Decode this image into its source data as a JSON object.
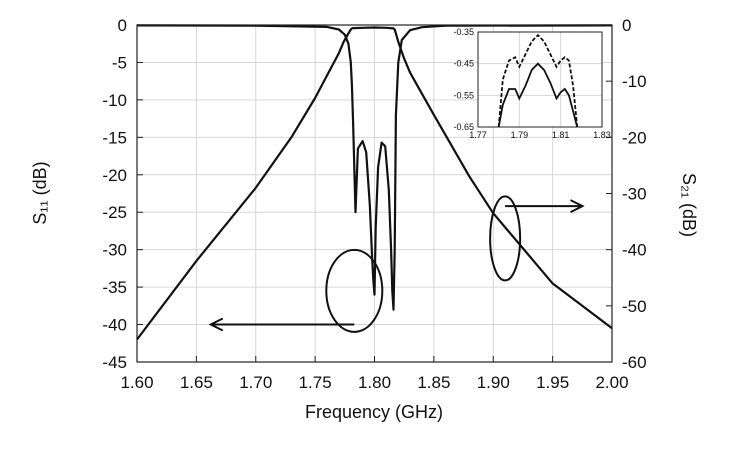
{
  "chart_data": [
    {
      "type": "line",
      "xlabel": "Frequency (GHz)",
      "ylabel_left": "S₁₁ (dB)",
      "ylabel_right": "S₂₁ (dB)",
      "xlim": [
        1.6,
        2.0
      ],
      "ylim_left": [
        -45,
        0
      ],
      "ylim_right": [
        -60,
        0
      ],
      "x_ticks": [
        "1.60",
        "1.65",
        "1.70",
        "1.75",
        "1.80",
        "1.85",
        "1.90",
        "1.95",
        "2.00"
      ],
      "y_ticks_left": [
        "0",
        "-5",
        "-10",
        "-15",
        "-20",
        "-25",
        "-30",
        "-35",
        "-40",
        "-45"
      ],
      "y_ticks_right": [
        "0",
        "-10",
        "-20",
        "-30",
        "-40",
        "-50",
        "-60"
      ],
      "grid": true,
      "series": [
        {
          "role": "S11",
          "axis": "left",
          "x": [
            1.6,
            1.7,
            1.76,
            1.77,
            1.775,
            1.778,
            1.78,
            1.781,
            1.782,
            1.784,
            1.786,
            1.79,
            1.793,
            1.796,
            1.798,
            1.799,
            1.8,
            1.801,
            1.803,
            1.806,
            1.809,
            1.812,
            1.814,
            1.815,
            1.816,
            1.817,
            1.818,
            1.82,
            1.823,
            1.83,
            1.84,
            1.86,
            2.0
          ],
          "y": [
            -0.05,
            -0.08,
            -0.25,
            -0.6,
            -1.3,
            -2.5,
            -5,
            -8,
            -13,
            -25,
            -16.5,
            -15.5,
            -17,
            -24,
            -31,
            -34,
            -36,
            -27,
            -19,
            -15.7,
            -16.2,
            -22,
            -30,
            -35.5,
            -38,
            -30,
            -12,
            -5,
            -2,
            -0.7,
            -0.3,
            -0.1,
            -0.05
          ]
        },
        {
          "role": "S21",
          "axis": "right",
          "x": [
            1.6,
            1.65,
            1.7,
            1.73,
            1.75,
            1.76,
            1.77,
            1.774,
            1.778,
            1.78,
            1.781,
            1.782,
            1.79,
            1.8,
            1.81,
            1.816,
            1.817,
            1.818,
            1.82,
            1.825,
            1.83,
            1.85,
            1.88,
            1.9,
            1.95,
            2.0
          ],
          "y": [
            -56,
            -42,
            -29,
            -20,
            -13,
            -9,
            -5,
            -3,
            -1.5,
            -0.8,
            -0.6,
            -0.55,
            -0.5,
            -0.45,
            -0.5,
            -0.6,
            -0.8,
            -1.5,
            -3,
            -6,
            -8.5,
            -16,
            -27,
            -33.5,
            -46,
            -54
          ]
        }
      ],
      "annotations": [
        {
          "shape": "ellipse",
          "at": [
            1.783,
            -35.5
          ],
          "arrow": "left",
          "arrow_to": [
            1.7,
            -40.5
          ]
        },
        {
          "shape": "ellipse",
          "at": [
            1.91,
            -28.5
          ],
          "arrow": "right",
          "arrow_to": [
            1.96,
            -30
          ]
        }
      ],
      "inset": {
        "type": "line",
        "xlim": [
          1.77,
          1.83
        ],
        "ylim": [
          -0.65,
          -0.35
        ],
        "x_ticks": [
          "1.77",
          "1.79",
          "1.81",
          "1.83"
        ],
        "y_ticks": [
          "-0.35",
          "-0.45",
          "-0.55",
          "-0.65"
        ],
        "series": [
          {
            "style": "dashed",
            "x": [
              1.78,
              1.782,
              1.785,
              1.788,
              1.79,
              1.793,
              1.796,
              1.799,
              1.802,
              1.805,
              1.808,
              1.81,
              1.812,
              1.814,
              1.816,
              1.818
            ],
            "y": [
              -0.65,
              -0.5,
              -0.44,
              -0.43,
              -0.46,
              -0.42,
              -0.38,
              -0.36,
              -0.38,
              -0.42,
              -0.46,
              -0.44,
              -0.43,
              -0.44,
              -0.52,
              -0.65
            ]
          },
          {
            "style": "solid",
            "x": [
              1.78,
              1.782,
              1.785,
              1.788,
              1.79,
              1.793,
              1.796,
              1.799,
              1.802,
              1.805,
              1.808,
              1.81,
              1.812,
              1.814,
              1.816,
              1.818
            ],
            "y": [
              -0.65,
              -0.58,
              -0.53,
              -0.53,
              -0.56,
              -0.52,
              -0.47,
              -0.45,
              -0.47,
              -0.51,
              -0.56,
              -0.54,
              -0.53,
              -0.55,
              -0.6,
              -0.65
            ]
          }
        ]
      }
    }
  ]
}
